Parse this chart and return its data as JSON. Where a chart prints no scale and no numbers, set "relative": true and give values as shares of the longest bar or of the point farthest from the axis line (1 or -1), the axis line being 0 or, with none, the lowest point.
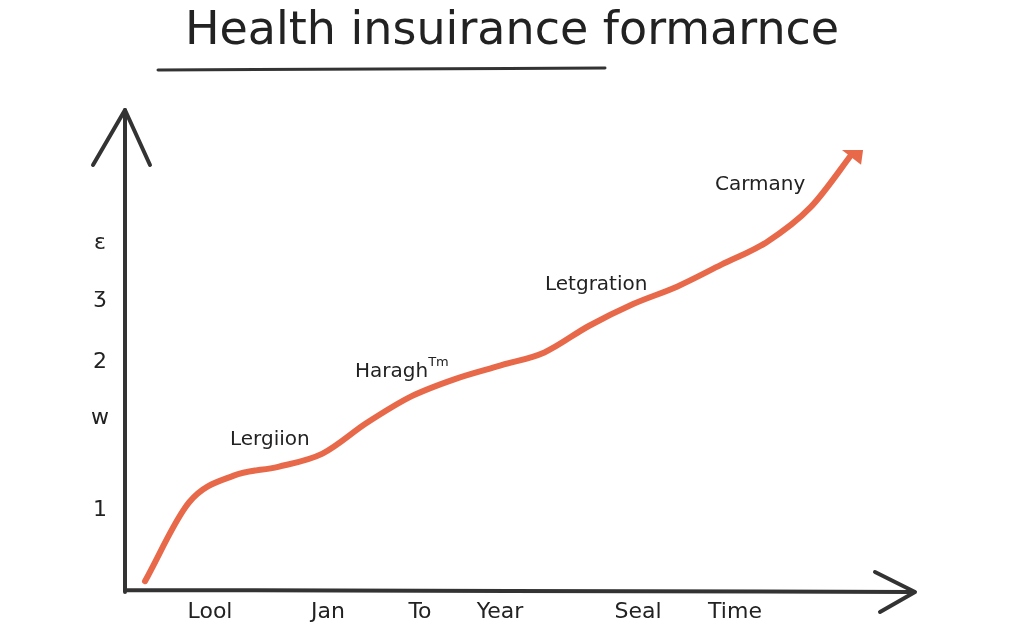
{
  "chart_data": {
    "type": "line",
    "title": "Health insuirance formarnce",
    "relative": true,
    "categories": [
      null,
      null,
      null,
      null,
      null,
      null,
      null,
      null,
      null,
      null,
      null,
      null,
      null,
      null,
      null,
      null,
      null
    ],
    "series": [
      {
        "color": "#e8694a",
        "values": [
          0.02,
          0.2,
          0.26,
          0.28,
          0.31,
          0.38,
          0.44,
          0.48,
          0.51,
          0.54,
          0.6,
          0.65,
          0.69,
          0.74,
          0.79,
          0.87,
          1
        ]
      }
    ],
    "annotations": [
      "Lergiion",
      "Haragh$^{Tm}$",
      "Letgration",
      "Carmany",
      "ε",
      "ʒ",
      "2",
      "w",
      "1",
      "Lool",
      "Jan",
      "To",
      "Year",
      "Seal",
      "Time"
    ],
    "grid": false,
    "legend": false,
    "marker": "none",
    "line_style": "solid"
  }
}
